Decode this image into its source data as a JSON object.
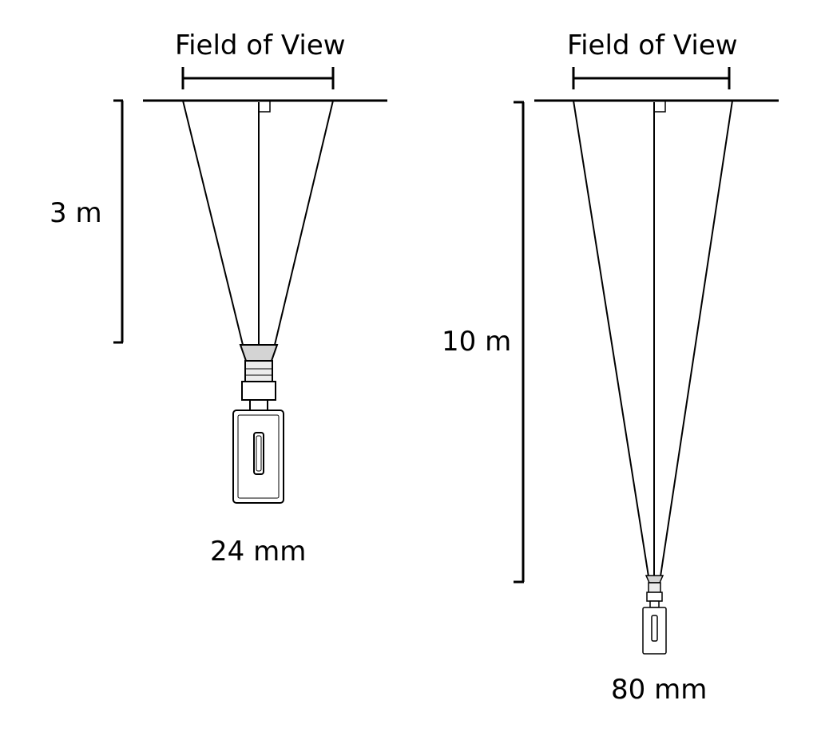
{
  "panels": [
    {
      "fov_label": "Field of View",
      "distance_label": "3 m",
      "focal_length_label": "24 mm"
    },
    {
      "fov_label": "Field of View",
      "distance_label": "10 m",
      "focal_length_label": "80 mm"
    }
  ],
  "colors": {
    "line": "#000000",
    "background": "#ffffff",
    "camera_fill": "#ffffff",
    "lens_shade": "#d9d9d9"
  }
}
